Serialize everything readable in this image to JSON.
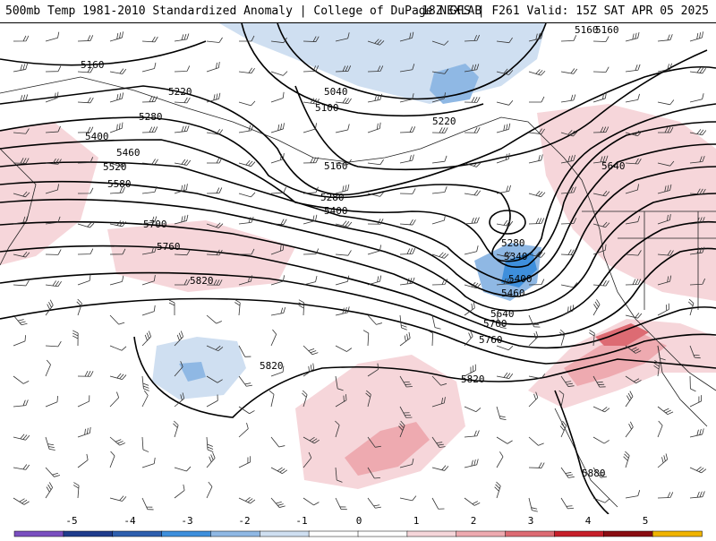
{
  "header": {
    "title": "500mb Temp 1981-2010 Standardized Anomaly | College of DuPage NEXLAB",
    "run_info": "18Z GFS | F261 Valid: 15Z SAT APR 05 2025"
  },
  "contours": {
    "labels": [
      "5160",
      "5220",
      "5280",
      "5400",
      "5460",
      "5520",
      "5580",
      "5700",
      "5760",
      "5820",
      "5040",
      "5100",
      "5160",
      "5220",
      "5280",
      "5400",
      "5160",
      "5280",
      "5340",
      "5400",
      "5460",
      "5640",
      "5700",
      "5760",
      "5640",
      "5160",
      "5820",
      "5820",
      "5880"
    ]
  },
  "colorbar": {
    "ticks": [
      "-5",
      "-4",
      "-3",
      "-2",
      "-1",
      "0",
      "1",
      "2",
      "3",
      "4",
      "5"
    ],
    "colors": [
      "#7a4fc0",
      "#1f3c8c",
      "#2e5fae",
      "#3e8fdc",
      "#8fb8e4",
      "#cfdff1",
      "#ffffff",
      "#ffffff",
      "#f6d6da",
      "#eeaab0",
      "#dd6b73",
      "#c71f2a",
      "#8a0d12",
      "#f0b400"
    ]
  }
}
